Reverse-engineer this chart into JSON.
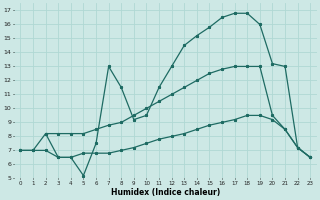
{
  "xlabel": "Humidex (Indice chaleur)",
  "xlim": [
    -0.5,
    23.5
  ],
  "ylim": [
    5,
    17.5
  ],
  "yticks": [
    5,
    6,
    7,
    8,
    9,
    10,
    11,
    12,
    13,
    14,
    15,
    16,
    17
  ],
  "xticks": [
    0,
    1,
    2,
    3,
    4,
    5,
    6,
    7,
    8,
    9,
    10,
    11,
    12,
    13,
    14,
    15,
    16,
    17,
    18,
    19,
    20,
    21,
    22,
    23
  ],
  "bg_color": "#cde8e5",
  "grid_color": "#b0d8d4",
  "line_color": "#1e6b63",
  "curve1_x": [
    2,
    3,
    4,
    5,
    6,
    7,
    8,
    9,
    10,
    11,
    12,
    13,
    14,
    15,
    16,
    17,
    18,
    19,
    20,
    21,
    22,
    23
  ],
  "curve1_y": [
    8.2,
    6.5,
    6.5,
    5.2,
    7.5,
    13.0,
    11.5,
    9.2,
    9.5,
    11.5,
    13.0,
    14.5,
    15.2,
    15.8,
    16.5,
    16.8,
    16.8,
    16.0,
    13.2,
    13.0,
    7.2,
    6.5
  ],
  "curve2_x": [
    0,
    1,
    2,
    3,
    4,
    5,
    6,
    7,
    8,
    9,
    10,
    11,
    12,
    13,
    14,
    15,
    16,
    17,
    18,
    19,
    20,
    21,
    22,
    23
  ],
  "curve2_y": [
    7.0,
    7.0,
    8.2,
    8.2,
    8.2,
    8.2,
    8.5,
    8.8,
    9.0,
    9.5,
    10.0,
    10.5,
    11.0,
    11.5,
    12.0,
    12.5,
    12.8,
    13.0,
    13.0,
    13.0,
    9.5,
    8.5,
    7.2,
    6.5
  ],
  "curve3_x": [
    0,
    1,
    2,
    3,
    4,
    5,
    6,
    7,
    8,
    9,
    10,
    11,
    12,
    13,
    14,
    15,
    16,
    17,
    18,
    19,
    20,
    21,
    22,
    23
  ],
  "curve3_y": [
    7.0,
    7.0,
    7.0,
    6.5,
    6.5,
    6.8,
    6.8,
    6.8,
    7.0,
    7.2,
    7.5,
    7.8,
    8.0,
    8.2,
    8.5,
    8.8,
    9.0,
    9.2,
    9.5,
    9.5,
    9.2,
    8.5,
    7.2,
    6.5
  ]
}
